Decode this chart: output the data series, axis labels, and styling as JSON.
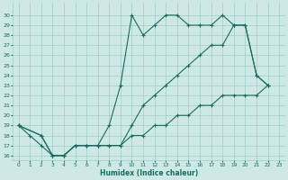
{
  "xlabel": "Humidex (Indice chaleur)",
  "ylabel": "",
  "bg_color": "#cde8e5",
  "grid_color": "#9eccc7",
  "line_color": "#1a6b60",
  "xlim": [
    -0.5,
    23.5
  ],
  "ylim": [
    15.5,
    31.2
  ],
  "xticks": [
    0,
    1,
    2,
    3,
    4,
    5,
    6,
    7,
    8,
    9,
    10,
    11,
    12,
    13,
    14,
    15,
    16,
    17,
    18,
    19,
    20,
    21,
    22,
    23
  ],
  "yticks": [
    16,
    17,
    18,
    19,
    20,
    21,
    22,
    23,
    24,
    25,
    26,
    27,
    28,
    29,
    30
  ],
  "line1_x": [
    0,
    1,
    2,
    3,
    4,
    5,
    6,
    7,
    8,
    9,
    10,
    11,
    12,
    13,
    14,
    15,
    16,
    17,
    18,
    19,
    20,
    21,
    22
  ],
  "line1_y": [
    19,
    18,
    17,
    16,
    16,
    17,
    17,
    17,
    19,
    23,
    30,
    28,
    29,
    30,
    30,
    29,
    29,
    29,
    30,
    29,
    29,
    24,
    23
  ],
  "line2_x": [
    0,
    2,
    3,
    4,
    5,
    6,
    7,
    8,
    9,
    10,
    11,
    12,
    13,
    14,
    15,
    16,
    17,
    18,
    19,
    20,
    21,
    22
  ],
  "line2_y": [
    19,
    18,
    16,
    16,
    17,
    17,
    17,
    17,
    17,
    19,
    21,
    22,
    23,
    24,
    25,
    26,
    27,
    27,
    29,
    29,
    24,
    23
  ],
  "line3_x": [
    0,
    2,
    3,
    4,
    5,
    6,
    7,
    8,
    9,
    10,
    11,
    12,
    13,
    14,
    15,
    16,
    17,
    18,
    19,
    20,
    21,
    22
  ],
  "line3_y": [
    19,
    18,
    16,
    16,
    17,
    17,
    17,
    17,
    17,
    18,
    18,
    19,
    19,
    20,
    20,
    21,
    21,
    22,
    22,
    22,
    22,
    23
  ]
}
